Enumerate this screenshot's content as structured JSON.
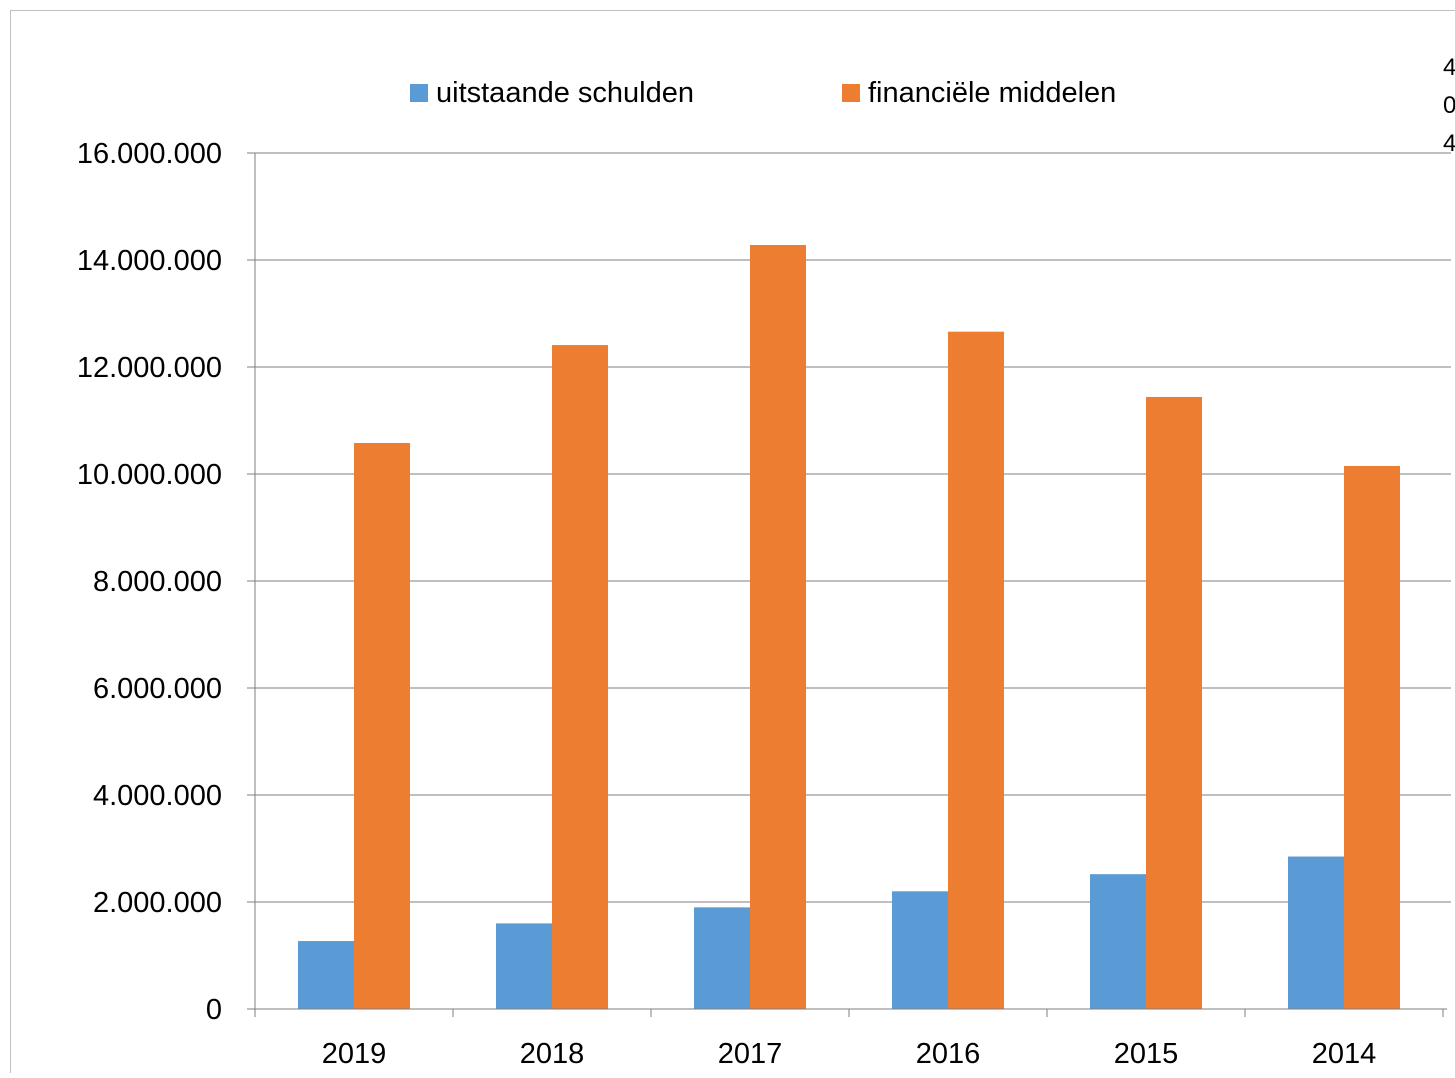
{
  "chart_data": {
    "type": "bar",
    "categories": [
      "2019",
      "2018",
      "2017",
      "2016",
      "2015",
      "2014"
    ],
    "series": [
      {
        "name": "uitstaande schulden",
        "color": "#5B9BD5",
        "values": [
          1270000,
          1600000,
          1900000,
          2200000,
          2520000,
          2850000
        ]
      },
      {
        "name": "financiële middelen",
        "color": "#ED7D31",
        "values": [
          10580000,
          12410000,
          14280000,
          12660000,
          11440000,
          10150000
        ]
      }
    ],
    "ylim": [
      0,
      16000000
    ],
    "yticks": [
      0,
      2000000,
      4000000,
      6000000,
      8000000,
      10000000,
      12000000,
      14000000,
      16000000
    ],
    "ytick_labels": [
      "0",
      "2.000.000",
      "4.000.000",
      "6.000.000",
      "8.000.000",
      "10.000.000",
      "12.000.000",
      "14.000.000",
      "16.000.000"
    ],
    "grid": true,
    "legend_position": "top",
    "edge_fragments": [
      "4",
      "0",
      "4"
    ]
  }
}
